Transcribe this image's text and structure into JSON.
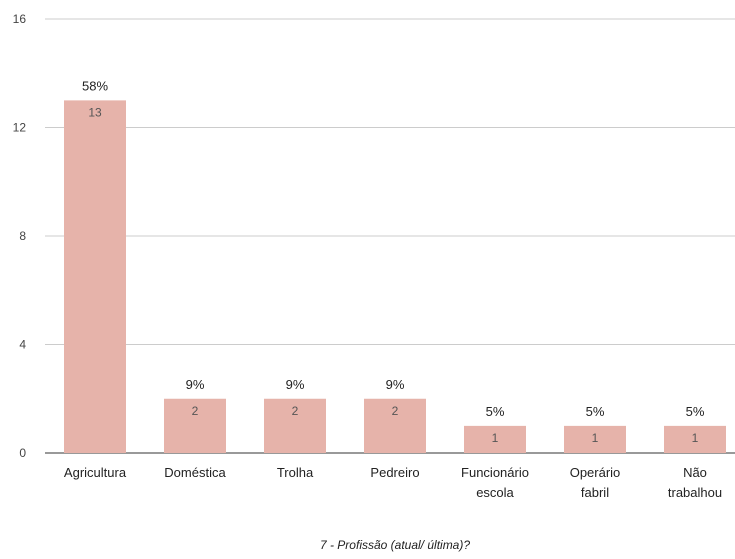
{
  "chart_data": {
    "type": "bar",
    "title": "",
    "xlabel": "7 - Profissão (atual/ última)?",
    "ylabel": "",
    "ylim": [
      0,
      16
    ],
    "yticks": [
      0,
      4,
      8,
      12,
      16
    ],
    "grid": true,
    "bar_color": "#e6b3aa",
    "categories": [
      [
        "Agricultura"
      ],
      [
        "Doméstica"
      ],
      [
        "Trolha"
      ],
      [
        "Pedreiro"
      ],
      [
        "Funcionário",
        "escola"
      ],
      [
        "Operário",
        "fabril"
      ],
      [
        "Não",
        "trabalhou"
      ]
    ],
    "values": [
      13,
      2,
      2,
      2,
      1,
      1,
      1
    ],
    "value_labels": [
      "13",
      "2",
      "2",
      "2",
      "1",
      "1",
      "1"
    ],
    "percent_labels": [
      "58%",
      "9%",
      "9%",
      "9%",
      "5%",
      "5%",
      "5%"
    ]
  }
}
